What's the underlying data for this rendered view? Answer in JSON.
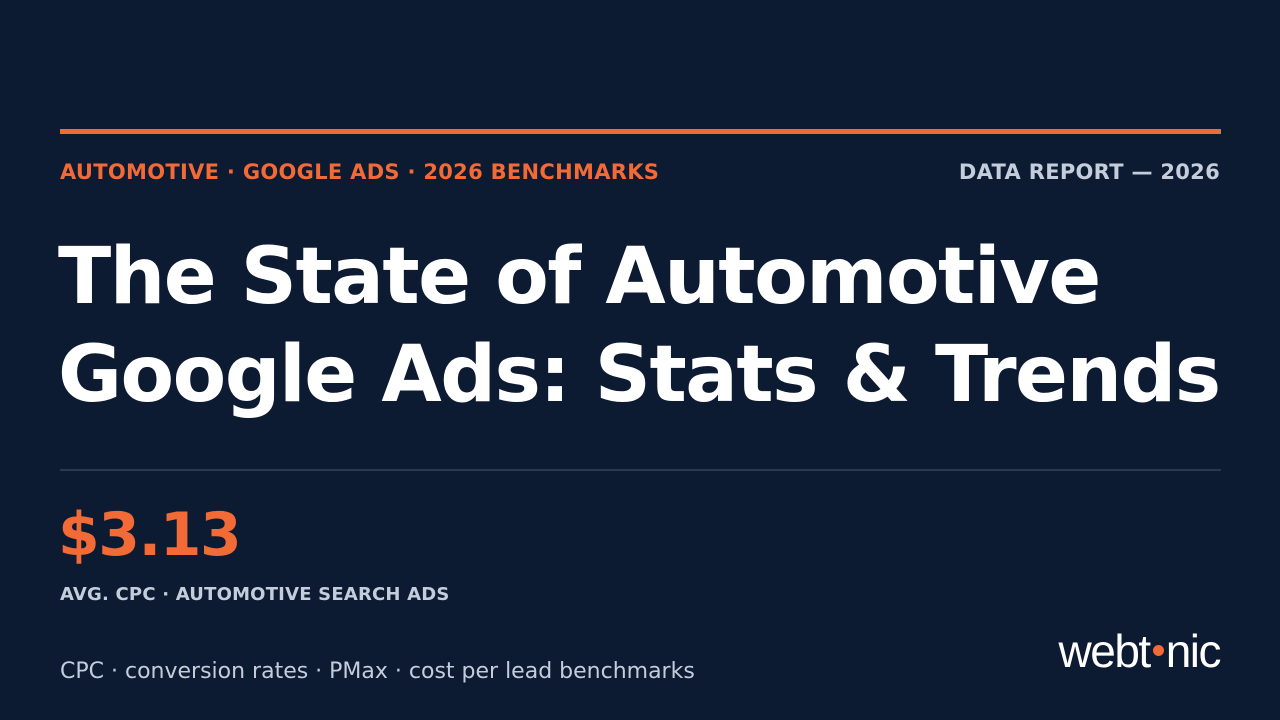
{
  "header": {
    "eyebrow": "AUTOMOTIVE · GOOGLE ADS · 2026 BENCHMARKS",
    "report_tag": "DATA REPORT — 2026"
  },
  "title": {
    "line1": "The State of Automotive",
    "line2": "Google Ads: Stats & Trends"
  },
  "stat": {
    "value": "$3.13",
    "label": "AVG. CPC · AUTOMOTIVE SEARCH ADS"
  },
  "footer": {
    "topics": "CPC · conversion rates · PMax · cost per lead benchmarks"
  },
  "logo": {
    "text": "webtonic",
    "part_before_dot": "webt",
    "part_after_dot": "nic"
  },
  "colors": {
    "background": "#0c1a32",
    "accent": "#f26a35",
    "text_primary": "#ffffff",
    "text_muted": "#c4cddb",
    "divider": "#2a3850"
  }
}
